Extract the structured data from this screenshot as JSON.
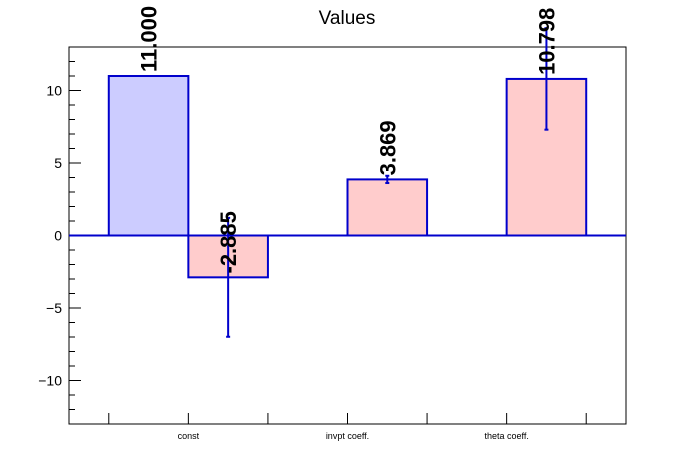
{
  "chart_data": {
    "type": "bar",
    "title": "Values",
    "xlabel": "",
    "ylabel": "",
    "ylim": [
      -13,
      13
    ],
    "yticks": [
      -10,
      -5,
      0,
      5,
      10
    ],
    "ytick_labels": [
      "−10",
      "−5",
      "0",
      "5",
      "10"
    ],
    "categories": [
      "",
      "const",
      "",
      "invpt coeff.",
      "",
      "theta coeff."
    ],
    "series": [
      {
        "values": [
          11.0,
          null,
          null,
          null,
          null,
          null
        ],
        "errors": [
          0,
          null,
          null,
          null,
          null,
          null
        ],
        "labels": [
          "11.000",
          "",
          "",
          "",
          "",
          ""
        ],
        "color": "#ccccff",
        "edge_color": "#0000cc"
      },
      {
        "values": [
          null,
          -2.885,
          null,
          3.869,
          null,
          10.798
        ],
        "errors": [
          null,
          4.1,
          null,
          0.25,
          null,
          3.5
        ],
        "labels": [
          "",
          "-2.885",
          "",
          "3.869",
          "",
          "10.798"
        ],
        "color": "#ffcccc",
        "edge_color": "#0000cc"
      }
    ],
    "grid": false,
    "legend": "none"
  }
}
